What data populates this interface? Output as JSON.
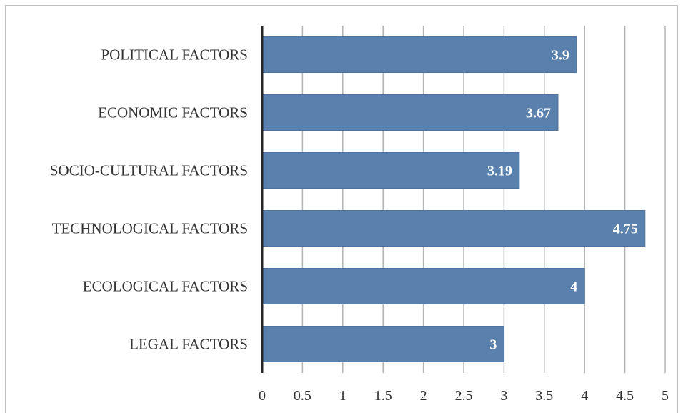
{
  "chart_data": {
    "type": "bar",
    "orientation": "horizontal",
    "categories": [
      "POLITICAL FACTORS",
      "ECONOMIC FACTORS",
      "SOCIO-CULTURAL FACTORS",
      "TECHNOLOGICAL FACTORS",
      "ECOLOGICAL FACTORS",
      "LEGAL FACTORS"
    ],
    "values": [
      3.9,
      3.67,
      3.19,
      4.75,
      4,
      3
    ],
    "value_labels": [
      "3.9",
      "3.67",
      "3.19",
      "4.75",
      "4",
      "3"
    ],
    "xlim": [
      0,
      5
    ],
    "xticks": [
      "0",
      "0.5",
      "1",
      "1.5",
      "2",
      "2.5",
      "3",
      "3.5",
      "4",
      "4.5",
      "5"
    ],
    "grid": "vertical",
    "legend": "none",
    "title": "",
    "xlabel": "",
    "ylabel": ""
  },
  "colors": {
    "bar": "#5a81ad",
    "bar_border": "#4f739c",
    "grid": "#b3b3b3",
    "axis": "#262626"
  }
}
